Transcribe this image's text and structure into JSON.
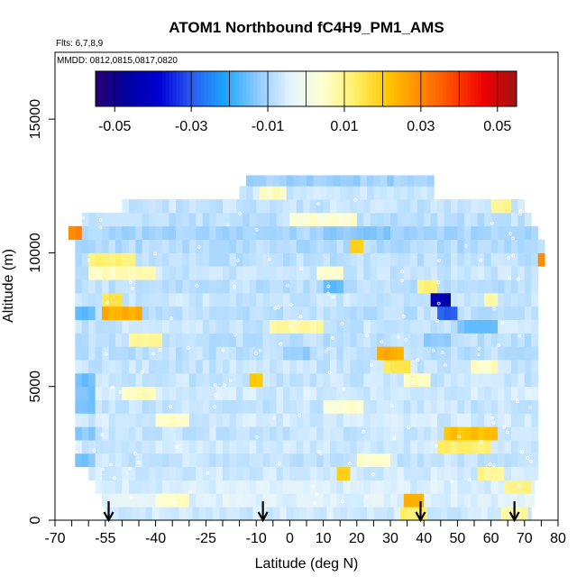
{
  "chart_data": {
    "type": "heatmap",
    "title": "ATOM1 Northbound fC4H9_PM1_AMS",
    "flights_note": "Flts: 6,7,8,9",
    "dates_note": "MMDD: 0812,0815,0817,0820",
    "xlabel": "Latitude (deg N)",
    "ylabel": "Altitude (m)",
    "xlim": [
      -70,
      80
    ],
    "ylim": [
      0,
      17500
    ],
    "x_ticks": [
      -70,
      -55,
      -40,
      -25,
      -10,
      0,
      10,
      20,
      30,
      40,
      50,
      60,
      70,
      80
    ],
    "x_tick_labels": [
      "-70",
      "-55",
      "-40",
      "-25",
      "-10",
      "0",
      "10",
      "20",
      "30",
      "40",
      "50",
      "60",
      "70",
      "80"
    ],
    "x_minor_ticks": [
      -65,
      -60,
      -50,
      -45,
      -35,
      -30,
      -20,
      -15,
      -5,
      5,
      15,
      25,
      35,
      45,
      55,
      65,
      75
    ],
    "y_ticks": [
      0,
      5000,
      10000,
      15000
    ],
    "y_tick_labels": [
      "0",
      "5000",
      "10000",
      "15000"
    ],
    "colorbar": {
      "min": -0.055,
      "max": 0.055,
      "tick_values": [
        -0.05,
        -0.03,
        -0.01,
        0.01,
        0.03,
        0.05
      ],
      "tick_labels": [
        "-0.05",
        "-0.03",
        "-0.01",
        "0.01",
        "0.03",
        "0.05"
      ],
      "colors": [
        "#2a0070",
        "#0000a0",
        "#0000d8",
        "#2a5ff0",
        "#1ba5ff",
        "#8ec9ff",
        "#e2f3ff",
        "#ffffd2",
        "#ffef6a",
        "#ffc800",
        "#ff8c00",
        "#ff4a00",
        "#ee0000",
        "#a01414"
      ]
    },
    "profile_markers_lat": [
      -54,
      -8,
      39,
      67
    ],
    "altitude_bands": [
      {
        "alt_min": 0,
        "alt_max": 500,
        "lat_min": -55,
        "lat_max": 72,
        "background": -0.006,
        "anomalies": [
          {
            "lat_min": 34,
            "lat_max": 40,
            "value": 0.012
          },
          {
            "lat_min": 64,
            "lat_max": 70,
            "value": 0.008
          }
        ]
      },
      {
        "alt_min": 500,
        "alt_max": 1000,
        "lat_min": -56,
        "lat_max": 73,
        "background": -0.004,
        "anomalies": [
          {
            "lat_min": 35,
            "lat_max": 40,
            "value": 0.025
          },
          {
            "lat_min": -40,
            "lat_max": -30,
            "value": 0.005
          }
        ]
      },
      {
        "alt_min": 1000,
        "alt_max": 1500,
        "lat_min": -58,
        "lat_max": 73,
        "background": -0.005,
        "anomalies": [
          {
            "lat_min": 65,
            "lat_max": 72,
            "value": 0.01
          }
        ]
      },
      {
        "alt_min": 1500,
        "alt_max": 2000,
        "lat_min": -60,
        "lat_max": 74,
        "background": -0.006,
        "anomalies": [
          {
            "lat_min": 14,
            "lat_max": 18,
            "value": 0.018
          },
          {
            "lat_min": 57,
            "lat_max": 63,
            "value": 0.009
          }
        ]
      },
      {
        "alt_min": 2000,
        "alt_max": 2500,
        "lat_min": -64,
        "lat_max": 74,
        "background": -0.007,
        "anomalies": [
          {
            "lat_min": -66,
            "lat_max": -58,
            "value": -0.014
          },
          {
            "lat_min": 20,
            "lat_max": 30,
            "value": 0.004
          }
        ]
      },
      {
        "alt_min": 2500,
        "alt_max": 3000,
        "lat_min": -64,
        "lat_max": 74,
        "background": -0.006,
        "anomalies": [
          {
            "lat_min": 44,
            "lat_max": 60,
            "value": 0.012
          }
        ]
      },
      {
        "alt_min": 3000,
        "alt_max": 3500,
        "lat_min": -64,
        "lat_max": 74,
        "background": -0.007,
        "anomalies": [
          {
            "lat_min": 46,
            "lat_max": 62,
            "value": 0.022
          },
          {
            "lat_min": -66,
            "lat_max": -58,
            "value": -0.013
          }
        ]
      },
      {
        "alt_min": 3500,
        "alt_max": 4000,
        "lat_min": -64,
        "lat_max": 74,
        "background": -0.006,
        "anomalies": [
          {
            "lat_min": -40,
            "lat_max": -30,
            "value": 0.006
          }
        ]
      },
      {
        "alt_min": 4000,
        "alt_max": 4500,
        "lat_min": -64,
        "lat_max": 74,
        "background": -0.007,
        "anomalies": [
          {
            "lat_min": -66,
            "lat_max": -58,
            "value": -0.015
          },
          {
            "lat_min": 10,
            "lat_max": 22,
            "value": 0.004
          }
        ]
      },
      {
        "alt_min": 4500,
        "alt_max": 5000,
        "lat_min": -64,
        "lat_max": 74,
        "background": -0.006,
        "anomalies": [
          {
            "lat_min": -50,
            "lat_max": -40,
            "value": 0.006
          },
          {
            "lat_min": -66,
            "lat_max": -58,
            "value": -0.014
          }
        ]
      },
      {
        "alt_min": 5000,
        "alt_max": 5500,
        "lat_min": -64,
        "lat_max": 74,
        "background": -0.007,
        "anomalies": [
          {
            "lat_min": -12,
            "lat_max": -8,
            "value": 0.02
          },
          {
            "lat_min": 34,
            "lat_max": 42,
            "value": 0.006
          },
          {
            "lat_min": -66,
            "lat_max": -58,
            "value": -0.015
          }
        ]
      },
      {
        "alt_min": 5500,
        "alt_max": 6000,
        "lat_min": -64,
        "lat_max": 74,
        "background": -0.007,
        "anomalies": [
          {
            "lat_min": 28,
            "lat_max": 36,
            "value": 0.014
          },
          {
            "lat_min": 55,
            "lat_max": 62,
            "value": 0.006
          }
        ]
      },
      {
        "alt_min": 6000,
        "alt_max": 6500,
        "lat_min": -64,
        "lat_max": 74,
        "background": -0.008,
        "anomalies": [
          {
            "lat_min": 26,
            "lat_max": 34,
            "value": 0.025
          },
          {
            "lat_min": -2,
            "lat_max": 6,
            "value": -0.012
          }
        ]
      },
      {
        "alt_min": 6500,
        "alt_max": 7000,
        "lat_min": -64,
        "lat_max": 74,
        "background": -0.008,
        "anomalies": [
          {
            "lat_min": -48,
            "lat_max": -38,
            "value": 0.008
          },
          {
            "lat_min": 40,
            "lat_max": 48,
            "value": -0.012
          }
        ]
      },
      {
        "alt_min": 7000,
        "alt_max": 7500,
        "lat_min": -64,
        "lat_max": 74,
        "background": -0.007,
        "anomalies": [
          {
            "lat_min": -5,
            "lat_max": 10,
            "value": 0.008
          },
          {
            "lat_min": 50,
            "lat_max": 62,
            "value": -0.015
          }
        ]
      },
      {
        "alt_min": 7500,
        "alt_max": 8000,
        "lat_min": -64,
        "lat_max": 74,
        "background": -0.008,
        "anomalies": [
          {
            "lat_min": -56,
            "lat_max": -44,
            "value": 0.025
          },
          {
            "lat_min": 44,
            "lat_max": 50,
            "value": -0.03
          },
          {
            "lat_min": -66,
            "lat_max": -58,
            "value": -0.016
          }
        ]
      },
      {
        "alt_min": 8000,
        "alt_max": 8500,
        "lat_min": -64,
        "lat_max": 74,
        "background": -0.007,
        "anomalies": [
          {
            "lat_min": -56,
            "lat_max": -50,
            "value": 0.015
          },
          {
            "lat_min": 42,
            "lat_max": 48,
            "value": -0.045
          },
          {
            "lat_min": 58,
            "lat_max": 62,
            "value": 0.008
          }
        ]
      },
      {
        "alt_min": 8500,
        "alt_max": 9000,
        "lat_min": -64,
        "lat_max": 74,
        "background": -0.008,
        "anomalies": [
          {
            "lat_min": 10,
            "lat_max": 16,
            "value": -0.016
          },
          {
            "lat_min": 38,
            "lat_max": 44,
            "value": 0.012
          }
        ]
      },
      {
        "alt_min": 9000,
        "alt_max": 9500,
        "lat_min": -64,
        "lat_max": 74,
        "background": -0.007,
        "anomalies": [
          {
            "lat_min": -60,
            "lat_max": -40,
            "value": 0.006
          },
          {
            "lat_min": 8,
            "lat_max": 16,
            "value": 0.004
          }
        ]
      },
      {
        "alt_min": 9500,
        "alt_max": 10000,
        "lat_min": -64,
        "lat_max": 76,
        "background": -0.008,
        "anomalies": [
          {
            "lat_min": -60,
            "lat_max": -46,
            "value": 0.012
          },
          {
            "lat_min": 74,
            "lat_max": 76,
            "value": 0.03
          }
        ]
      },
      {
        "alt_min": 10000,
        "alt_max": 10500,
        "lat_min": -64,
        "lat_max": 76,
        "background": -0.009,
        "anomalies": [
          {
            "lat_min": 18,
            "lat_max": 22,
            "value": 0.02
          }
        ]
      },
      {
        "alt_min": 10500,
        "alt_max": 11000,
        "lat_min": -66,
        "lat_max": 74,
        "background": -0.01,
        "anomalies": [
          {
            "lat_min": -66,
            "lat_max": -63,
            "value": 0.03
          },
          {
            "lat_min": 10,
            "lat_max": 30,
            "value": -0.013
          }
        ]
      },
      {
        "alt_min": 11000,
        "alt_max": 11500,
        "lat_min": -62,
        "lat_max": 72,
        "background": -0.008,
        "anomalies": [
          {
            "lat_min": 0,
            "lat_max": 20,
            "value": 0.004
          }
        ]
      },
      {
        "alt_min": 11500,
        "alt_max": 12000,
        "lat_min": -50,
        "lat_max": 70,
        "background": -0.007,
        "anomalies": [
          {
            "lat_min": 60,
            "lat_max": 66,
            "value": 0.01
          }
        ]
      },
      {
        "alt_min": 12000,
        "alt_max": 12500,
        "lat_min": -15,
        "lat_max": 43,
        "background": -0.007,
        "anomalies": [
          {
            "lat_min": -8,
            "lat_max": -2,
            "value": 0.006
          }
        ]
      },
      {
        "alt_min": 12500,
        "alt_max": 12900,
        "lat_min": -13,
        "lat_max": 43,
        "background": -0.011,
        "anomalies": []
      }
    ]
  }
}
